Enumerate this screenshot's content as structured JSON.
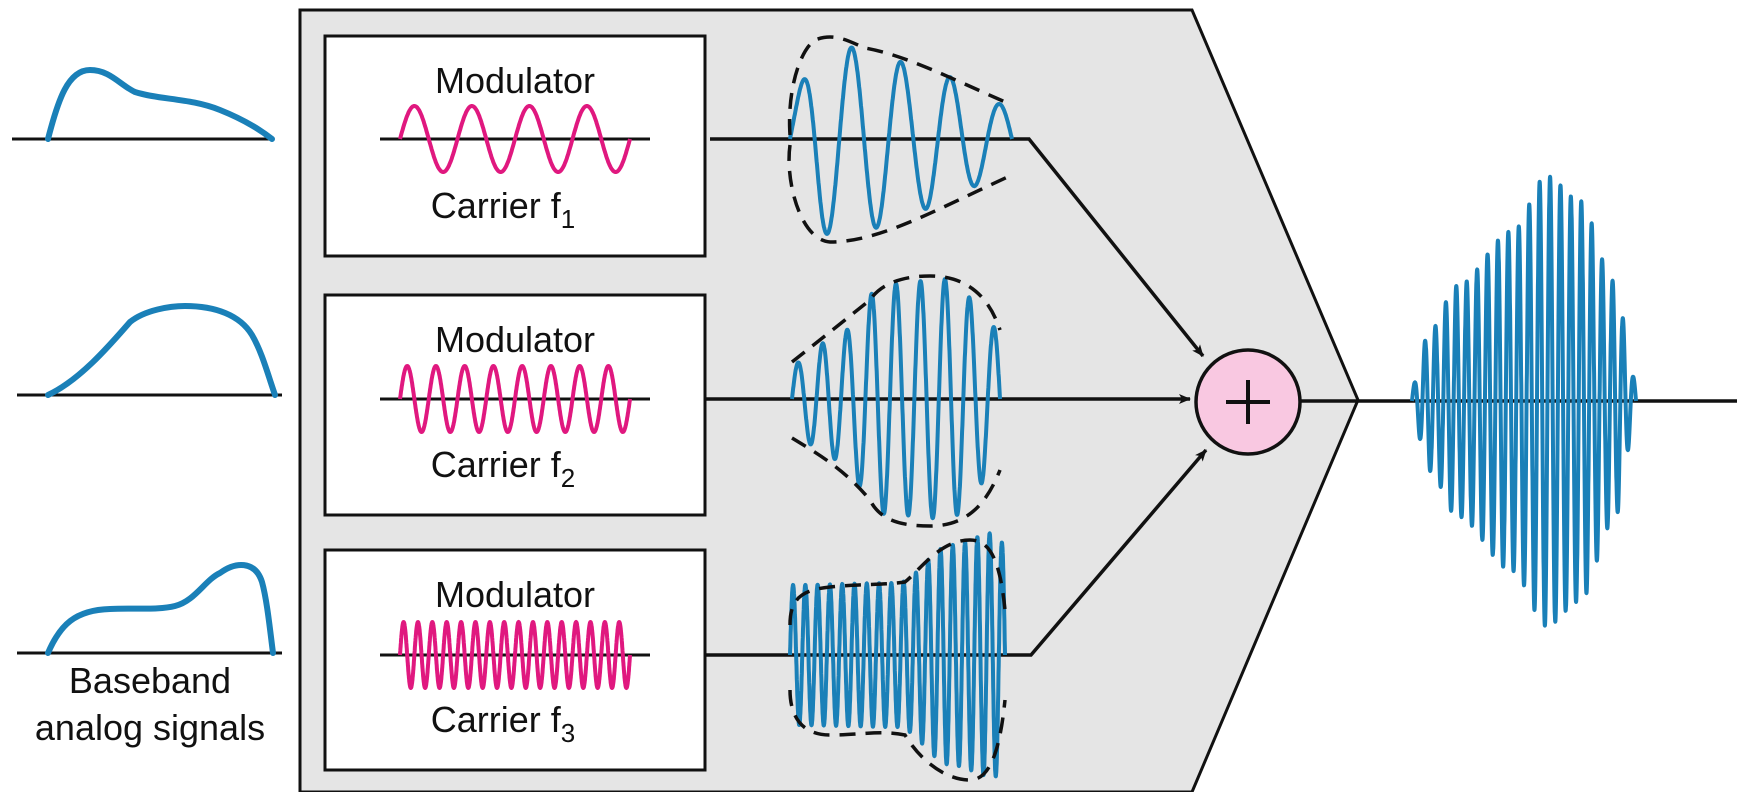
{
  "colors": {
    "panel": "#e5e5e5",
    "signal": "#1a80b8",
    "carrier": "#e0187f",
    "adder_fill": "#f9c8e1",
    "line": "#111111"
  },
  "modulators": [
    {
      "title": "Modulator",
      "carrier_label": "Carrier f",
      "carrier_subscript": "1"
    },
    {
      "title": "Modulator",
      "carrier_label": "Carrier f",
      "carrier_subscript": "2"
    },
    {
      "title": "Modulator",
      "carrier_label": "Carrier f",
      "carrier_subscript": "3"
    }
  ],
  "baseband": {
    "label_line1": "Baseband",
    "label_line2": "analog signals"
  },
  "adder": {
    "symbol": "+",
    "icon": "plus-icon"
  }
}
